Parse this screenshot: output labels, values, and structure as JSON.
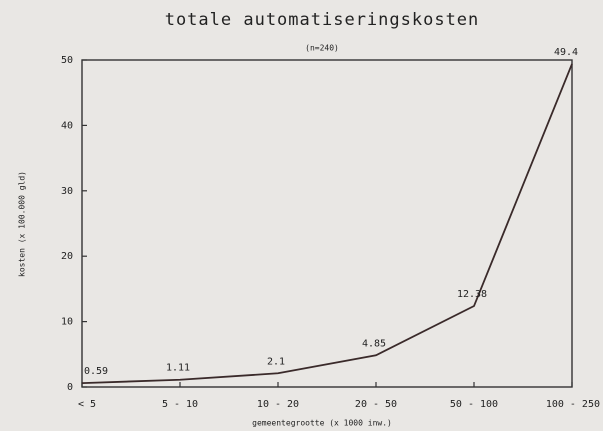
{
  "chart_data": {
    "type": "line",
    "title": "totale automatiseringskosten",
    "subtitle": "(n=240)",
    "x_label": "gemeentegrootte (x 1000 inw.)",
    "y_label": "kosten (x 100.000 gld)",
    "categories": [
      "< 5",
      "5 - 10",
      "10 - 20",
      "20 - 50",
      "50 - 100",
      "100 - 250"
    ],
    "series": [
      {
        "name": "totale automatiseringskosten",
        "color": "#3a2a2a",
        "values": [
          0.59,
          1.11,
          2.1,
          4.85,
          12.38,
          49.4
        ]
      }
    ],
    "ylim": [
      0,
      50
    ],
    "yticks": [
      0,
      10,
      20,
      30,
      40,
      50
    ],
    "grid": false
  }
}
